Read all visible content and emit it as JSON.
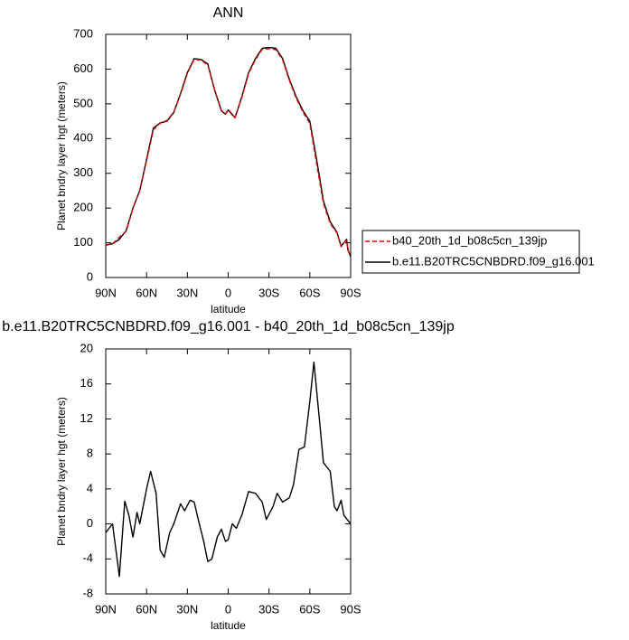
{
  "chart_data": [
    {
      "type": "line",
      "title": "ANN",
      "xlabel": "latitude",
      "ylabel": "Planet bndry layer hgt (meters)",
      "x": [
        90,
        85,
        80,
        75,
        70,
        65,
        60,
        55,
        50,
        45,
        40,
        35,
        30,
        25,
        20,
        15,
        10,
        5,
        2,
        0,
        -5,
        -10,
        -15,
        -20,
        -25,
        -30,
        -35,
        -40,
        -45,
        -50,
        -55,
        -60,
        -65,
        -70,
        -75,
        -80,
        -83,
        -85,
        -87,
        -88,
        -90
      ],
      "xlim": [
        90,
        -90
      ],
      "xticks": [
        {
          "value": 90,
          "label": "90N"
        },
        {
          "value": 60,
          "label": "60N"
        },
        {
          "value": 30,
          "label": "30N"
        },
        0,
        {
          "value": -30,
          "label": "30S"
        },
        {
          "value": -60,
          "label": "60S"
        },
        {
          "value": -90,
          "label": "90S"
        }
      ],
      "ylim": [
        0,
        700
      ],
      "yticks": [
        0,
        100,
        200,
        300,
        400,
        500,
        600,
        700
      ],
      "legend": "right",
      "series": [
        {
          "name": "b40_20th_1d_b08c5cn_139jp",
          "color": "#e00000",
          "dashed": true,
          "values": [
            94,
            97,
            116,
            133,
            199,
            250,
            336,
            425,
            444,
            452,
            476,
            528,
            588,
            628,
            626,
            612,
            541,
            481,
            471,
            484,
            461,
            518,
            587,
            627,
            657,
            659,
            656,
            627,
            567,
            516,
            476,
            444,
            328,
            213,
            155,
            128,
            89,
            99,
            108,
            78,
            60
          ]
        },
        {
          "name": "b.e11.B20TRC5CNBDRD.f09_g16.001",
          "color": "#000000",
          "dashed": false,
          "values": [
            93,
            97,
            110,
            135,
            200,
            250,
            340,
            430,
            445,
            450,
            475,
            530,
            590,
            630,
            628,
            615,
            540,
            480,
            470,
            482,
            460,
            520,
            590,
            630,
            660,
            662,
            660,
            630,
            570,
            520,
            480,
            450,
            340,
            220,
            160,
            130,
            90,
            100,
            110,
            80,
            60
          ]
        }
      ]
    },
    {
      "type": "line",
      "title": "b.e11.B20TRC5CNBDRD.f09_g16.001 - b40_20th_1d_b08c5cn_139jp",
      "xlabel": "latitude",
      "ylabel": "Planet bndry layer hgt (meters)",
      "x": [
        90,
        85,
        80,
        76,
        73,
        70,
        67,
        65,
        60,
        57,
        53,
        50,
        47,
        43,
        40,
        35,
        32,
        28,
        25,
        22,
        18,
        15,
        12,
        8,
        5,
        2,
        0,
        -3,
        -6,
        -10,
        -15,
        -20,
        -25,
        -28,
        -33,
        -36,
        -40,
        -45,
        -48,
        -52,
        -56,
        -60,
        -63,
        -67,
        -70,
        -75,
        -78,
        -80,
        -83,
        -85,
        -90
      ],
      "xlim": [
        90,
        -90
      ],
      "xticks": [
        {
          "value": 90,
          "label": "90N"
        },
        {
          "value": 60,
          "label": "60N"
        },
        {
          "value": 30,
          "label": "30N"
        },
        0,
        {
          "value": -30,
          "label": "30S"
        },
        {
          "value": -60,
          "label": "60S"
        },
        {
          "value": -90,
          "label": "90S"
        }
      ],
      "ylim": [
        -8,
        20
      ],
      "yticks": [
        -8,
        -4,
        0,
        4,
        8,
        12,
        16,
        20
      ],
      "series": [
        {
          "color": "#000000",
          "dashed": false,
          "values": [
            -1,
            0,
            -6,
            2.6,
            1,
            -1.5,
            1.3,
            0,
            4,
            6,
            3.5,
            -3,
            -3.8,
            -1,
            0,
            2.3,
            1.5,
            2.7,
            2.5,
            0.5,
            -2,
            -4.3,
            -4,
            -1.5,
            -0.6,
            -2,
            -1.8,
            0,
            -0.5,
            1,
            3.7,
            3.5,
            2.5,
            0.5,
            2,
            3.5,
            2.5,
            3,
            4.5,
            8.5,
            8.8,
            14,
            18.5,
            12,
            7,
            6,
            2,
            1.5,
            2.7,
            1,
            0
          ]
        }
      ]
    }
  ]
}
